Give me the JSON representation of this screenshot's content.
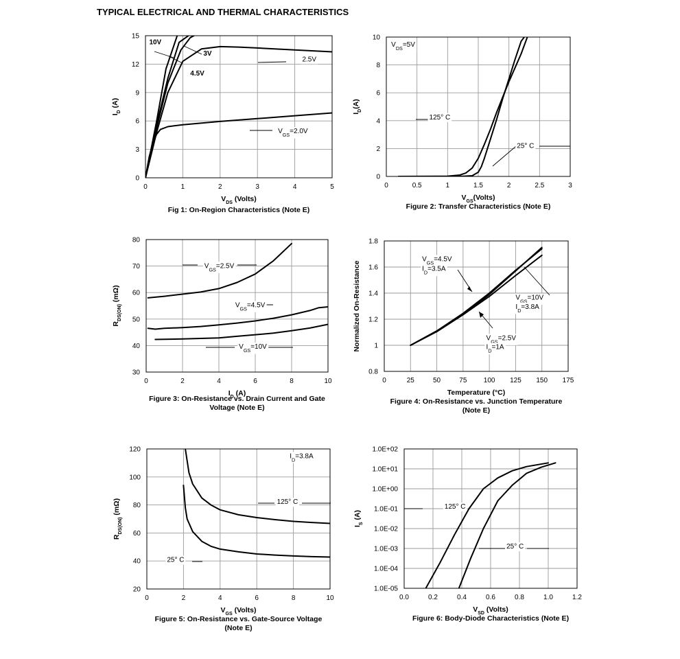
{
  "page": {
    "title": "TYPICAL ELECTRICAL AND THERMAL CHARACTERISTICS"
  },
  "chart_data": [
    {
      "id": "fig1",
      "type": "line",
      "xscale": "linear",
      "grid": true,
      "xlim": [
        0,
        5
      ],
      "ylim": [
        0,
        15
      ],
      "xticks": [
        0,
        1,
        2,
        3,
        4,
        5
      ],
      "yticks": [
        0,
        3,
        6,
        9,
        12,
        15
      ],
      "xtick_labels": [
        "0",
        "1",
        "2",
        "3",
        "4",
        "5"
      ],
      "ytick_labels": [
        "0",
        "3",
        "6",
        "9",
        "12",
        "15"
      ],
      "xlabel": {
        "main": "V",
        "sub": "DS",
        "tail": " (Volts)"
      },
      "ylabel": {
        "main": "I",
        "sub": "D",
        "tail": " (A)"
      },
      "caption": [
        "Fig 1: On-Region Characteristics (Note E)"
      ],
      "series": [
        {
          "label": "10V",
          "values": [
            [
              0,
              0
            ],
            [
              0.3,
              6
            ],
            [
              0.55,
              11.5
            ],
            [
              0.85,
              15
            ]
          ]
        },
        {
          "label": "3V",
          "values": [
            [
              0,
              0
            ],
            [
              0.3,
              5.6
            ],
            [
              0.6,
              10.5
            ],
            [
              0.9,
              14.3
            ],
            [
              1.15,
              15
            ]
          ]
        },
        {
          "label": "4.5V",
          "values": [
            [
              0,
              0
            ],
            [
              0.3,
              5.3
            ],
            [
              0.6,
              10
            ],
            [
              0.95,
              13.5
            ],
            [
              1.2,
              14.8
            ],
            [
              1.3,
              15
            ]
          ]
        },
        {
          "label": "2.5V",
          "values": [
            [
              0,
              0
            ],
            [
              0.3,
              4.8
            ],
            [
              0.6,
              9
            ],
            [
              1,
              12.3
            ],
            [
              1.5,
              13.6
            ],
            [
              2,
              13.85
            ],
            [
              2.5,
              13.8
            ],
            [
              3,
              13.7
            ],
            [
              4,
              13.5
            ],
            [
              5,
              13.3
            ]
          ]
        },
        {
          "label": "V<sub>GS</sub>=2.0V",
          "values": [
            [
              0,
              0
            ],
            [
              0.1,
              2.2
            ],
            [
              0.2,
              3.7
            ],
            [
              0.3,
              4.6
            ],
            [
              0.4,
              5.1
            ],
            [
              0.6,
              5.4
            ],
            [
              1,
              5.6
            ],
            [
              2,
              5.95
            ],
            [
              3,
              6.25
            ],
            [
              4,
              6.55
            ],
            [
              5,
              6.85
            ]
          ]
        }
      ],
      "annotations": [
        {
          "text": "10V",
          "x": 0.1,
          "y": 14.1
        },
        {
          "text": "3V",
          "x": 1.55,
          "y": 12.9
        },
        {
          "text": "4.5V",
          "x": 1.2,
          "y": 10.8
        },
        {
          "text": "2.5V",
          "x": 4.2,
          "y": 12.3
        },
        {
          "text": "V<sub>GS</sub>=2.0V",
          "x": 3.55,
          "y": 4.7
        }
      ]
    },
    {
      "id": "fig2",
      "type": "line",
      "xscale": "linear",
      "grid": true,
      "xlim": [
        0,
        3
      ],
      "ylim": [
        0,
        10
      ],
      "xticks": [
        0,
        0.5,
        1,
        1.5,
        2,
        2.5,
        3
      ],
      "yticks": [
        0,
        2,
        4,
        6,
        8,
        10
      ],
      "xtick_labels": [
        "0",
        "0.5",
        "1",
        "1.5",
        "2",
        "2.5",
        "3"
      ],
      "ytick_labels": [
        "0",
        "2",
        "4",
        "6",
        "8",
        "10"
      ],
      "xlabel": {
        "main": "V",
        "sub": "GS",
        "tail": "(Volts)"
      },
      "ylabel": {
        "main": "I",
        "sub": "D",
        "tail": "(A)"
      },
      "caption": [
        "Figure 2: Transfer Characteristics (Note E)"
      ],
      "series": [
        {
          "label": "125° C",
          "values": [
            [
              0.2,
              0
            ],
            [
              1,
              0.02
            ],
            [
              1.2,
              0.1
            ],
            [
              1.3,
              0.25
            ],
            [
              1.4,
              0.6
            ],
            [
              1.5,
              1.3
            ],
            [
              1.6,
              2.3
            ],
            [
              1.7,
              3.4
            ],
            [
              1.8,
              4.6
            ],
            [
              1.9,
              5.7
            ],
            [
              2,
              6.8
            ],
            [
              2.1,
              7.8
            ],
            [
              2.2,
              8.8
            ],
            [
              2.3,
              10
            ]
          ]
        },
        {
          "label": "25° C",
          "values": [
            [
              0.2,
              0
            ],
            [
              1.2,
              0
            ],
            [
              1.4,
              0.05
            ],
            [
              1.5,
              0.3
            ],
            [
              1.55,
              0.7
            ],
            [
              1.6,
              1.3
            ],
            [
              1.7,
              2.7
            ],
            [
              1.8,
              4.1
            ],
            [
              1.9,
              5.6
            ],
            [
              2,
              7
            ],
            [
              2.1,
              8.4
            ],
            [
              2.2,
              9.7
            ],
            [
              2.25,
              10
            ]
          ]
        }
      ],
      "annotations": [
        {
          "text": "V<sub>DS</sub>=5V",
          "x": 0.08,
          "y": 9.3
        },
        {
          "text": "125° C",
          "x": 0.7,
          "y": 4.1
        },
        {
          "text": "25° C",
          "x": 2.13,
          "y": 2.05
        }
      ]
    },
    {
      "id": "fig3",
      "type": "line",
      "xscale": "linear",
      "grid": true,
      "xlim": [
        0,
        10
      ],
      "ylim": [
        30,
        80
      ],
      "xticks": [
        0,
        2,
        4,
        6,
        8,
        10
      ],
      "yticks": [
        30,
        40,
        50,
        60,
        70,
        80
      ],
      "xtick_labels": [
        "0",
        "2",
        "4",
        "6",
        "8",
        "10"
      ],
      "ytick_labels": [
        "30",
        "40",
        "50",
        "60",
        "70",
        "80"
      ],
      "xlabel": {
        "main": "I",
        "sub": "D",
        "tail": " (A)"
      },
      "ylabel": {
        "main": "R",
        "sub": "DS(ON)",
        "tail": " (mΩ)"
      },
      "caption": [
        "Figure 3: On-Resistance vs. Drain Current and Gate",
        "Voltage (Note E)"
      ],
      "series": [
        {
          "label": "V<sub>GS</sub>=2.5V",
          "values": [
            [
              0.1,
              58
            ],
            [
              1,
              58.6
            ],
            [
              2,
              59.4
            ],
            [
              3,
              60.2
            ],
            [
              4,
              61.5
            ],
            [
              5,
              63.8
            ],
            [
              6,
              67
            ],
            [
              7,
              72
            ],
            [
              8,
              78.5
            ]
          ]
        },
        {
          "label": "V<sub>GS</sub>=4.5V",
          "values": [
            [
              0.1,
              46.5
            ],
            [
              0.5,
              46.2
            ],
            [
              1,
              46.5
            ],
            [
              2,
              46.8
            ],
            [
              3,
              47.2
            ],
            [
              4,
              47.8
            ],
            [
              5,
              48.5
            ],
            [
              6,
              49.3
            ],
            [
              7,
              50.3
            ],
            [
              8,
              51.6
            ],
            [
              9,
              53.2
            ],
            [
              9.5,
              54.3
            ],
            [
              10,
              54.6
            ]
          ]
        },
        {
          "label": "V<sub>GS</sub>=10V",
          "values": [
            [
              0.5,
              42.3
            ],
            [
              2,
              42.5
            ],
            [
              3,
              42.7
            ],
            [
              4,
              42.9
            ],
            [
              5,
              43.5
            ],
            [
              6,
              44.1
            ],
            [
              7,
              44.7
            ],
            [
              8,
              45.6
            ],
            [
              9,
              46.6
            ],
            [
              10,
              48
            ]
          ]
        }
      ],
      "annotations": [
        {
          "text": "V<sub>GS</sub>=2.5V",
          "x": 3.2,
          "y": 69.3
        },
        {
          "text": "V<sub>GS</sub>=4.5V",
          "x": 4.9,
          "y": 54.5
        },
        {
          "text": "V<sub>GS</sub>=10V",
          "x": 5.1,
          "y": 38.8
        }
      ]
    },
    {
      "id": "fig4",
      "type": "line",
      "xscale": "linear",
      "grid": true,
      "xlim": [
        0,
        175
      ],
      "ylim": [
        0.8,
        1.8
      ],
      "xticks": [
        0,
        25,
        50,
        75,
        100,
        125,
        150,
        175
      ],
      "yticks": [
        0.8,
        1,
        1.2,
        1.4,
        1.6,
        1.8
      ],
      "xtick_labels": [
        "0",
        "25",
        "50",
        "75",
        "100",
        "125",
        "150",
        "175"
      ],
      "ytick_labels": [
        "0.8",
        "1",
        "1.2",
        "1.4",
        "1.6",
        "1.8"
      ],
      "xlabel": {
        "main": "Temperature (°C)",
        "sub": "",
        "tail": ""
      },
      "ylabel": {
        "main": "Normalized On-Resistance",
        "sub": "",
        "tail": ""
      },
      "caption": [
        "Figure 4: On-Resistance vs. Junction Temperature",
        "(Note E)"
      ],
      "series": [
        {
          "label": "V<sub>GS</sub>=4.5V",
          "values": [
            [
              25,
              1
            ],
            [
              50,
              1.105
            ],
            [
              75,
              1.235
            ],
            [
              100,
              1.39
            ],
            [
              125,
              1.57
            ],
            [
              150,
              1.75
            ]
          ]
        },
        {
          "label": "V<sub>GS</sub>=10V",
          "values": [
            [
              25,
              1
            ],
            [
              50,
              1.11
            ],
            [
              75,
              1.245
            ],
            [
              100,
              1.4
            ],
            [
              125,
              1.575
            ],
            [
              150,
              1.74
            ]
          ]
        },
        {
          "label": "V<sub>GS</sub>=2.5V",
          "values": [
            [
              25,
              1
            ],
            [
              50,
              1.11
            ],
            [
              75,
              1.235
            ],
            [
              100,
              1.375
            ],
            [
              125,
              1.535
            ],
            [
              150,
              1.69
            ]
          ]
        }
      ],
      "annotations": [
        {
          "text": "V<sub>GS</sub>=4.5V",
          "x": 36,
          "y": 1.645
        },
        {
          "text": "I<sub>D</sub>=3.5A",
          "x": 36,
          "y": 1.57
        },
        {
          "text": "V<sub>GS</sub>=10V",
          "x": 125,
          "y": 1.35
        },
        {
          "text": "I<sub>D</sub>=3.8A",
          "x": 125,
          "y": 1.28
        },
        {
          "text": "V<sub>GS</sub>=2.5V",
          "x": 97,
          "y": 1.04
        },
        {
          "text": "I<sub>D</sub>=1A",
          "x": 97,
          "y": 0.97
        }
      ]
    },
    {
      "id": "fig5",
      "type": "line",
      "xscale": "linear",
      "grid": true,
      "xlim": [
        0,
        10
      ],
      "ylim": [
        20,
        120
      ],
      "xticks": [
        0,
        2,
        4,
        6,
        8,
        10
      ],
      "yticks": [
        20,
        40,
        60,
        80,
        100,
        120
      ],
      "xtick_labels": [
        "0",
        "2",
        "4",
        "6",
        "8",
        "10"
      ],
      "ytick_labels": [
        "20",
        "40",
        "60",
        "80",
        "100",
        "120"
      ],
      "xlabel": {
        "main": "V",
        "sub": "GS",
        "tail": " (Volts)"
      },
      "ylabel": {
        "main": "R",
        "sub": "DS(ON)",
        "tail": " (mΩ)"
      },
      "caption": [
        "Figure 5: On-Resistance vs. Gate-Source Voltage",
        "(Note E)"
      ],
      "series": [
        {
          "label": "125° C",
          "values": [
            [
              2.1,
              120
            ],
            [
              2.3,
              103
            ],
            [
              2.5,
              95
            ],
            [
              3,
              85
            ],
            [
              3.5,
              80
            ],
            [
              4,
              76.5
            ],
            [
              5,
              73
            ],
            [
              6,
              71
            ],
            [
              7,
              69.5
            ],
            [
              8,
              68.3
            ],
            [
              9,
              67.5
            ],
            [
              10,
              66.8
            ]
          ]
        },
        {
          "label": "25° C",
          "values": [
            [
              2,
              94
            ],
            [
              2.1,
              78
            ],
            [
              2.2,
              70
            ],
            [
              2.5,
              61
            ],
            [
              3,
              54
            ],
            [
              3.5,
              50.5
            ],
            [
              4,
              48.5
            ],
            [
              5,
              46.5
            ],
            [
              6,
              45
            ],
            [
              7,
              44.2
            ],
            [
              8,
              43.6
            ],
            [
              9,
              43.1
            ],
            [
              10,
              42.8
            ]
          ]
        }
      ],
      "annotations": [
        {
          "text": "I<sub>D</sub>=3.8A",
          "x": 7.8,
          "y": 113.5
        },
        {
          "text": "125° C",
          "x": 7.1,
          "y": 80.7
        },
        {
          "text": "25° C",
          "x": 1.1,
          "y": 39.4
        }
      ]
    },
    {
      "id": "fig6",
      "type": "line",
      "xscale": "linear",
      "yscale": "log",
      "grid": true,
      "xlim": [
        0,
        1.2
      ],
      "ylim": [
        1e-05,
        100
      ],
      "xticks": [
        0,
        0.2,
        0.4,
        0.6,
        0.8,
        1,
        1.2
      ],
      "yticks": [
        1e-05,
        0.0001,
        0.001,
        0.01,
        0.1,
        1,
        10,
        100
      ],
      "xtick_labels": [
        "0.0",
        "0.2",
        "0.4",
        "0.6",
        "0.8",
        "1.0",
        "1.2"
      ],
      "ytick_labels": [
        "1.0E-05",
        "1.0E-04",
        "1.0E-03",
        "1.0E-02",
        "1.0E-01",
        "1.0E+00",
        "1.0E+01",
        "1.0E+02"
      ],
      "xlabel": {
        "main": "V",
        "sub": "SD",
        "tail": " (Volts)"
      },
      "ylabel": {
        "main": "I",
        "sub": "S",
        "tail": " (A)"
      },
      "caption": [
        "Figure 6: Body-Diode Characteristics (Note E)"
      ],
      "series": [
        {
          "label": "125° C",
          "values": [
            [
              0.15,
              1e-05
            ],
            [
              0.25,
              0.0002
            ],
            [
              0.35,
              0.005
            ],
            [
              0.45,
              0.1
            ],
            [
              0.55,
              1
            ],
            [
              0.65,
              3.5
            ],
            [
              0.75,
              8
            ],
            [
              0.85,
              13
            ],
            [
              1,
              20
            ]
          ]
        },
        {
          "label": "25° C",
          "values": [
            [
              0.38,
              1e-05
            ],
            [
              0.46,
              0.0003
            ],
            [
              0.55,
              0.01
            ],
            [
              0.65,
              0.25
            ],
            [
              0.75,
              1.5
            ],
            [
              0.85,
              6
            ],
            [
              0.95,
              12
            ],
            [
              1.05,
              20
            ]
          ]
        }
      ],
      "annotations": [
        {
          "text": "125° C",
          "x": 0.28,
          "y": 0.1
        },
        {
          "text": "25° C",
          "x": 0.71,
          "y": 0.001
        }
      ]
    }
  ]
}
